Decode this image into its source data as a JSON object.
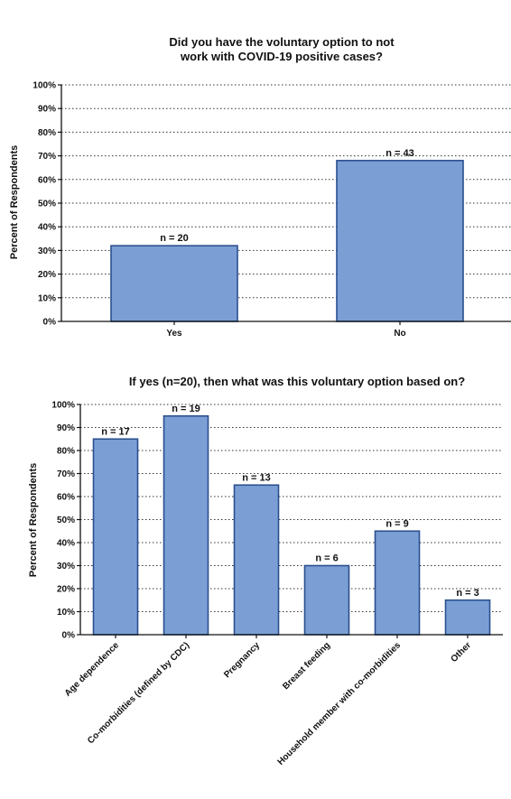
{
  "colors": {
    "bar_fill": "#7b9fd4",
    "bar_stroke": "#2b4f8f",
    "axis": "#111111",
    "grid": "#333333"
  },
  "chart_data": [
    {
      "type": "bar",
      "title_line1": "Did you have the voluntary option to not",
      "title_line2": "work with COVID-19 positive cases?",
      "ylabel": "Percent of Respondents",
      "xlabel": "",
      "ylim": [
        0,
        100
      ],
      "yticks": [
        "0%",
        "10%",
        "20%",
        "30%",
        "40%",
        "50%",
        "60%",
        "70%",
        "80%",
        "90%",
        "100%"
      ],
      "grid": "dotted horizontal",
      "categories": [
        "Yes",
        "No"
      ],
      "values": [
        32,
        68
      ],
      "data_labels": [
        "n = 20",
        "n = 43"
      ]
    },
    {
      "type": "bar",
      "title": "If yes (n=20), then what was this voluntary option based on?",
      "ylabel": "Percent of Respondents",
      "xlabel": "",
      "ylim": [
        0,
        100
      ],
      "yticks": [
        "0%",
        "10%",
        "20%",
        "30%",
        "40%",
        "50%",
        "60%",
        "70%",
        "80%",
        "90%",
        "100%"
      ],
      "grid": "dotted horizontal",
      "categories": [
        "Age dependence",
        "Co-morbidities (defined by CDC)",
        "Pregnancy",
        "Breast feeding",
        "Household member with co-morbidities",
        "Other"
      ],
      "values": [
        85,
        95,
        65,
        30,
        45,
        15
      ],
      "data_labels": [
        "n = 17",
        "n = 19",
        "n = 13",
        "n = 6",
        "n = 9",
        "n = 3"
      ]
    }
  ]
}
